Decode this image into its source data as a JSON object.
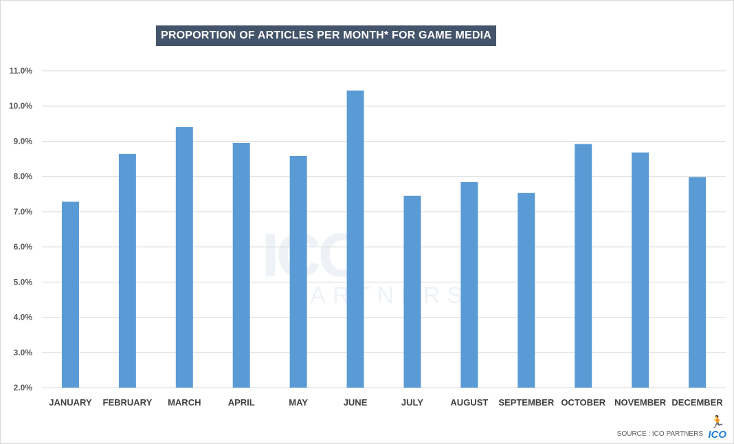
{
  "chart_data": {
    "type": "bar",
    "title": "PROPORTION OF ARTICLES PER MONTH* FOR GAME MEDIA",
    "categories": [
      "JANUARY",
      "FEBRUARY",
      "MARCH",
      "APRIL",
      "MAY",
      "JUNE",
      "JULY",
      "AUGUST",
      "SEPTEMBER",
      "OCTOBER",
      "NOVEMBER",
      "DECEMBER"
    ],
    "values": [
      7.28,
      8.64,
      9.4,
      8.95,
      8.58,
      10.44,
      7.45,
      7.84,
      7.53,
      8.92,
      8.68,
      7.98
    ],
    "ylim": [
      2.0,
      11.0
    ],
    "yticks": [
      "2.0%",
      "3.0%",
      "4.0%",
      "5.0%",
      "6.0%",
      "7.0%",
      "8.0%",
      "9.0%",
      "10.0%",
      "11.0%"
    ],
    "xlabel": "",
    "ylabel": "",
    "grid": true,
    "bar_color": "#5b9bd5"
  },
  "source": "SOURCE : ICO PARTNERS",
  "logo": "ICO",
  "watermark": {
    "line1": "ICO",
    "line2": "PARTNERS"
  }
}
